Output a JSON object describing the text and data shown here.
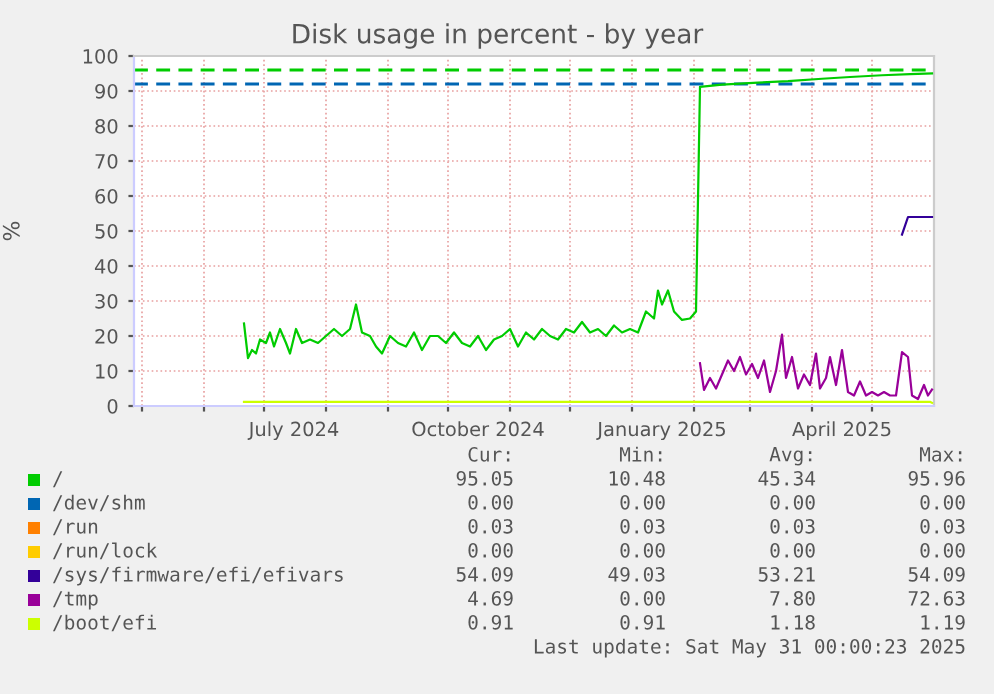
{
  "chart_data": {
    "type": "line",
    "title": "Disk usage in percent - by year",
    "ylabel": "%",
    "xlim": [
      "2024-04-27",
      "2025-06-01"
    ],
    "ylim": [
      0,
      100
    ],
    "yticks": [
      0,
      10,
      20,
      30,
      40,
      50,
      60,
      70,
      80,
      90,
      100
    ],
    "xticks": [
      {
        "value": "2024-05-01",
        "label": null
      },
      {
        "value": "2024-06-01",
        "label": null
      },
      {
        "value": "2024-07-01",
        "label": null
      },
      {
        "value": "2024-07-16",
        "label": "July 2024"
      },
      {
        "value": "2024-08-01",
        "label": null
      },
      {
        "value": "2024-09-01",
        "label": null
      },
      {
        "value": "2024-10-01",
        "label": null
      },
      {
        "value": "2024-10-16",
        "label": "October 2024"
      },
      {
        "value": "2024-11-01",
        "label": null
      },
      {
        "value": "2024-12-01",
        "label": null
      },
      {
        "value": "2025-01-01",
        "label": null
      },
      {
        "value": "2025-01-16",
        "label": "January 2025"
      },
      {
        "value": "2025-02-01",
        "label": null
      },
      {
        "value": "2025-03-01",
        "label": null
      },
      {
        "value": "2025-04-01",
        "label": null
      },
      {
        "value": "2025-04-16",
        "label": "April 2025"
      },
      {
        "value": "2025-05-01",
        "label": null
      }
    ],
    "grid": true,
    "legend": "bottom",
    "ref_lines": [
      {
        "axis": "y",
        "value": 96,
        "color": "#00cc00",
        "line_style": "dashed"
      },
      {
        "axis": "y",
        "value": 92,
        "color": "#0066b3",
        "line_style": "dashed"
      }
    ],
    "series": [
      {
        "name": "/",
        "color": "#00cc00",
        "x": [
          "2024-06-21",
          "2024-06-23",
          "2024-06-25",
          "2024-06-27",
          "2024-06-29",
          "2024-07-02",
          "2024-07-04",
          "2024-07-06",
          "2024-07-09",
          "2024-07-12",
          "2024-07-14",
          "2024-07-17",
          "2024-07-20",
          "2024-07-24",
          "2024-07-28",
          "2024-08-01",
          "2024-08-05",
          "2024-08-09",
          "2024-08-13",
          "2024-08-16",
          "2024-08-19",
          "2024-08-23",
          "2024-08-26",
          "2024-08-29",
          "2024-09-02",
          "2024-09-06",
          "2024-09-10",
          "2024-09-14",
          "2024-09-18",
          "2024-09-22",
          "2024-09-26",
          "2024-09-30",
          "2024-10-04",
          "2024-10-08",
          "2024-10-12",
          "2024-10-16",
          "2024-10-20",
          "2024-10-24",
          "2024-10-28",
          "2024-11-01",
          "2024-11-05",
          "2024-11-09",
          "2024-11-13",
          "2024-11-17",
          "2024-11-21",
          "2024-11-25",
          "2024-11-29",
          "2024-12-03",
          "2024-12-07",
          "2024-12-11",
          "2024-12-15",
          "2024-12-19",
          "2024-12-23",
          "2024-12-27",
          "2024-12-31",
          "2025-01-04",
          "2025-01-08",
          "2025-01-12",
          "2025-01-14",
          "2025-01-16",
          "2025-01-19",
          "2025-01-22",
          "2025-01-26",
          "2025-01-30",
          "2025-02-02",
          "2025-02-04",
          "2025-02-15",
          "2025-03-05",
          "2025-03-20",
          "2025-04-06",
          "2025-04-20",
          "2025-05-06",
          "2025-05-20",
          "2025-05-31"
        ],
        "values": [
          23.6,
          13.7,
          16,
          15,
          19,
          18,
          21,
          17,
          22,
          18,
          15,
          22,
          18,
          19,
          18,
          20,
          22,
          20,
          22,
          29,
          21,
          20,
          17,
          15,
          20,
          18,
          17,
          21,
          16,
          20,
          20,
          18,
          21,
          18,
          17,
          20,
          16,
          19,
          20,
          22,
          17,
          21,
          19,
          22,
          20,
          19,
          22,
          21,
          24,
          21,
          22,
          20,
          23,
          21,
          22,
          21,
          27,
          25,
          33,
          29,
          33,
          27,
          24.6,
          25,
          27,
          91.2,
          91.8,
          92.4,
          92.8,
          93.5,
          94,
          94.5,
          94.8,
          95
        ]
      },
      {
        "name": "/dev/shm",
        "color": "#0066b3"
      },
      {
        "name": "/run",
        "color": "#ff8000"
      },
      {
        "name": "/run/lock",
        "color": "#ffcc00"
      },
      {
        "name": "/sys/firmware/efi/efivars",
        "color": "#330099",
        "x": [
          "2025-05-16",
          "2025-05-19",
          "2025-05-31"
        ],
        "values": [
          49,
          54,
          54
        ]
      },
      {
        "name": "/tmp",
        "color": "#990099",
        "x": [
          "2025-02-04",
          "2025-02-06",
          "2025-02-09",
          "2025-02-12",
          "2025-02-15",
          "2025-02-18",
          "2025-02-21",
          "2025-02-24",
          "2025-02-27",
          "2025-03-02",
          "2025-03-05",
          "2025-03-08",
          "2025-03-11",
          "2025-03-14",
          "2025-03-17",
          "2025-03-19",
          "2025-03-22",
          "2025-03-25",
          "2025-03-28",
          "2025-03-31",
          "2025-04-03",
          "2025-04-05",
          "2025-04-08",
          "2025-04-10",
          "2025-04-13",
          "2025-04-16",
          "2025-04-19",
          "2025-04-22",
          "2025-04-25",
          "2025-04-28",
          "2025-05-01",
          "2025-05-04",
          "2025-05-07",
          "2025-05-10",
          "2025-05-13",
          "2025-05-16",
          "2025-05-19",
          "2025-05-21",
          "2025-05-24",
          "2025-05-27",
          "2025-05-29",
          "2025-05-31"
        ],
        "values": [
          12.2,
          4.6,
          8,
          5,
          9,
          13,
          10,
          14,
          9,
          12,
          8,
          13,
          4,
          10,
          20.4,
          8,
          14,
          5,
          9,
          6,
          15,
          5,
          8,
          14,
          6,
          16,
          4,
          3,
          7,
          3,
          4,
          3,
          4,
          3,
          3,
          15.4,
          14,
          3,
          2,
          6,
          3,
          4.7
        ]
      },
      {
        "name": "/boot/efi",
        "color": "#ccff00",
        "x": [
          "2024-06-21",
          "2025-05-30",
          "2025-05-31"
        ],
        "values": [
          1.2,
          1.2,
          0.9
        ]
      }
    ],
    "annotations": [
      "Cur:",
      "Min:",
      "Avg:",
      "Max:",
      "95.05",
      "10.48",
      "45.34",
      "95.96",
      "0.00",
      "0.00",
      "0.00",
      "0.00",
      "0.03",
      "0.03",
      "0.03",
      "0.03",
      "0.00",
      "0.00",
      "0.00",
      "0.00",
      "54.09",
      "49.03",
      "53.21",
      "54.09",
      "4.69",
      "0.00",
      "7.80",
      "72.63",
      "0.91",
      "0.91",
      "1.18",
      "1.19",
      "Last update: Sat May 31 00:00:23 2025"
    ]
  }
}
